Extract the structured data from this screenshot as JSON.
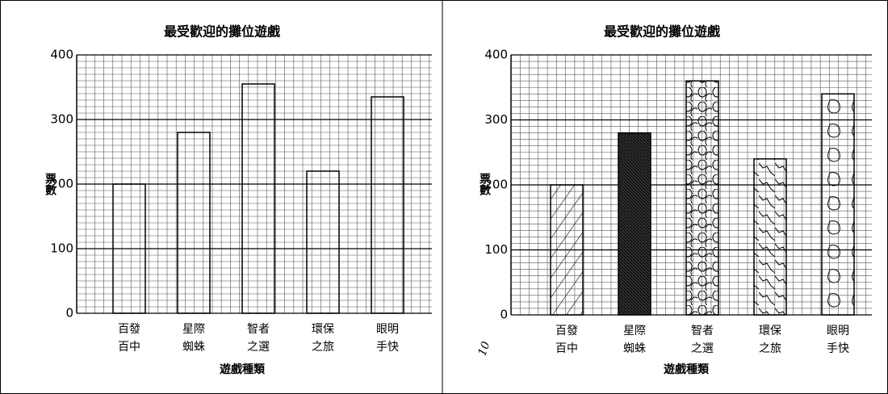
{
  "chart_data": [
    {
      "type": "bar",
      "title": "最受歡迎的攤位遊戲",
      "x_label": "遊戲種類",
      "y_label": "票數",
      "categories": [
        [
          "百發",
          "百中"
        ],
        [
          "星際",
          "蜘蛛"
        ],
        [
          "智者",
          "之選"
        ],
        [
          "環保",
          "之旅"
        ],
        [
          "眼明",
          "手快"
        ]
      ],
      "values": [
        200,
        280,
        355,
        220,
        335
      ],
      "color": "#000000",
      "bar_style": "outline",
      "ylim": [
        0,
        400
      ],
      "yticks": [
        0,
        100,
        200,
        300,
        400
      ],
      "grid": true
    },
    {
      "type": "bar",
      "title": "最受歡迎的攤位遊戲",
      "x_label": "遊戲種類",
      "y_label": "票數",
      "categories": [
        [
          "百發",
          "百中"
        ],
        [
          "星際",
          "蜘蛛"
        ],
        [
          "智者",
          "之選"
        ],
        [
          "環保",
          "之旅"
        ],
        [
          "眼明",
          "手快"
        ]
      ],
      "values": [
        200,
        280,
        360,
        240,
        340
      ],
      "color": "#000000",
      "bar_patterns": [
        "hatch",
        "solid",
        "circles",
        "waves",
        "blobs"
      ],
      "ylim": [
        0,
        400
      ],
      "yticks": [
        0,
        100,
        200,
        300,
        400
      ],
      "grid": true,
      "annotation": "10"
    }
  ]
}
